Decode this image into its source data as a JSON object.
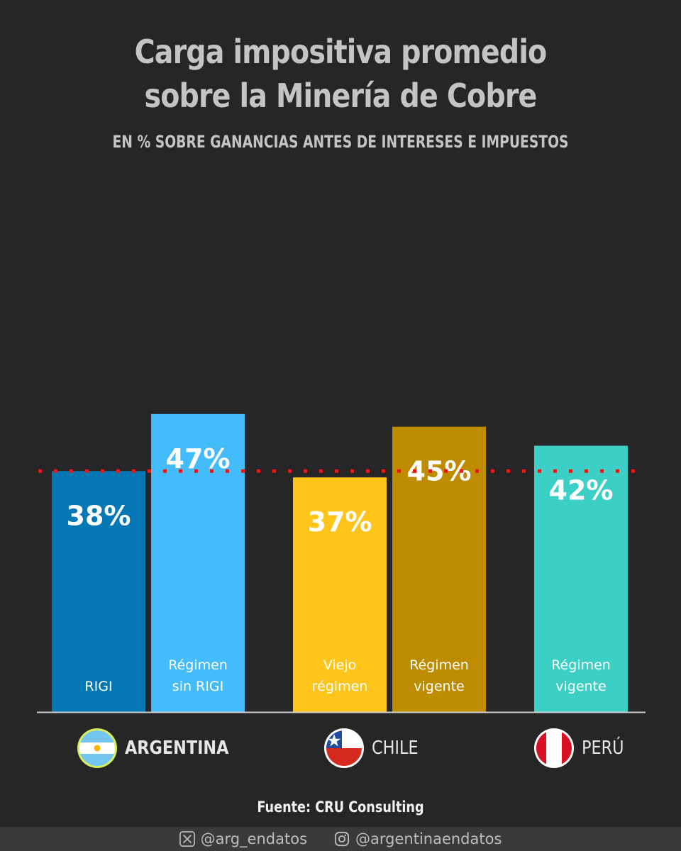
{
  "header": {
    "title_line1": "Carga impositiva promedio",
    "title_line2": "sobre la Minería de Cobre",
    "subtitle": "EN % SOBRE GANANCIAS ANTES DE INTERESES E IMPUESTOS"
  },
  "chart_data": {
    "type": "bar",
    "title": "Carga impositiva promedio sobre la Minería de Cobre",
    "subtitle": "EN % SOBRE GANANCIAS ANTES DE INTERESES E IMPUESTOS",
    "unit": "%",
    "reference_line": {
      "value": 38,
      "style": "dotted",
      "color": "#e01b1b"
    },
    "bars": [
      {
        "group": "ARGENTINA",
        "label": [
          "RIGI"
        ],
        "value": 38,
        "value_label": "38%",
        "color": "#0378b5"
      },
      {
        "group": "ARGENTINA",
        "label": [
          "Régimen",
          "sin RIGI"
        ],
        "value": 47,
        "value_label": "47%",
        "color": "#44bbfb"
      },
      {
        "group": "CHILE",
        "label": [
          "Viejo",
          "régimen"
        ],
        "value": 37,
        "value_label": "37%",
        "color": "#fec419"
      },
      {
        "group": "CHILE",
        "label": [
          "Régimen",
          "vigente"
        ],
        "value": 45,
        "value_label": "45%",
        "color": "#bd8c00"
      },
      {
        "group": "PERÚ",
        "label": [
          "Régimen",
          "vigente"
        ],
        "value": 42,
        "value_label": "42%",
        "color": "#3ccfc6"
      }
    ],
    "groups": [
      "ARGENTINA",
      "CHILE",
      "PERÚ"
    ]
  },
  "countries": {
    "argentina": {
      "name": "ARGENTINA",
      "icon": "argentina-flag-icon"
    },
    "chile": {
      "name": "CHILE",
      "icon": "chile-flag-icon"
    },
    "peru": {
      "name": "PERÚ",
      "icon": "peru-flag-icon"
    }
  },
  "source": "Fuente: CRU Consulting",
  "footer": {
    "x_handle": "@arg_endatos",
    "instagram_handle": "@argentinaendatos",
    "x_icon": "x-logo-icon",
    "instagram_icon": "instagram-icon"
  }
}
